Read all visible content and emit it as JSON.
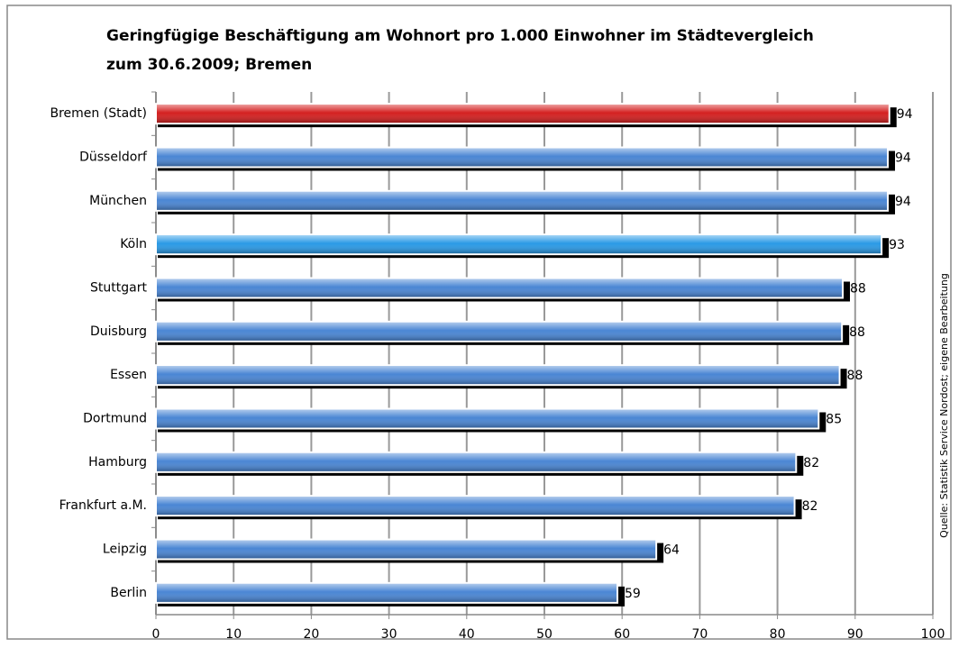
{
  "chart_data": {
    "type": "bar",
    "orientation": "horizontal",
    "title": [
      "Geringfügige Beschäftigung am Wohnort pro 1.000 Einwohner im Städtevergleich",
      "zum 30.6.2009; Bremen"
    ],
    "source": "Quelle: Statistik Service Nordost; eigene Bearbeitung",
    "categories": [
      "Bremen (Stadt)",
      "Düsseldorf",
      "München",
      "Köln",
      "Stuttgart",
      "Duisburg",
      "Essen",
      "Dortmund",
      "Hamburg",
      "Frankfurt a.M.",
      "Leipzig",
      "Berlin"
    ],
    "values": [
      94.4,
      94.2,
      94.2,
      93.4,
      88.4,
      88.3,
      88.0,
      85.3,
      82.4,
      82.2,
      64.4,
      59.4
    ],
    "value_labels": [
      "94",
      "94",
      "94",
      "93",
      "88",
      "88",
      "88",
      "85",
      "82",
      "82",
      "64",
      "59"
    ],
    "colors": [
      "#d42020",
      "#4a86d4",
      "#4a86d4",
      "#2a9ae6",
      "#4a86d4",
      "#4a86d4",
      "#4a86d4",
      "#4a86d4",
      "#4a86d4",
      "#4a86d4",
      "#4a86d4",
      "#4a86d4"
    ],
    "xlim": [
      0,
      100
    ],
    "xticks": [
      0,
      10,
      20,
      30,
      40,
      50,
      60,
      70,
      80,
      90,
      100
    ],
    "grid": true
  }
}
